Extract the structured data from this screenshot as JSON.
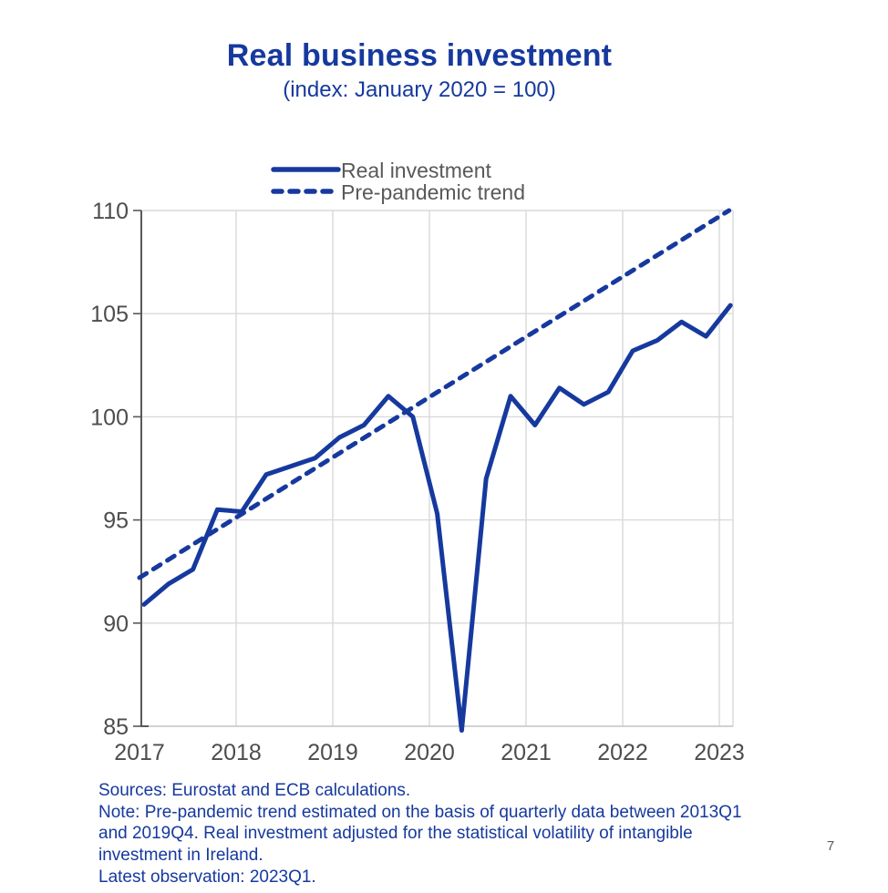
{
  "page": {
    "title": "Real business investment",
    "subtitle": "(index: January 2020 = 100)",
    "page_number": "7"
  },
  "legend": {
    "items": [
      {
        "label": "Real investment",
        "style": "solid"
      },
      {
        "label": "Pre-pandemic trend",
        "style": "dashed"
      }
    ]
  },
  "footer": {
    "lines": [
      "Sources: Eurostat and ECB calculations.",
      "Note: Pre-pandemic trend estimated on the basis of quarterly data between 2013Q1",
      "and 2019Q4. Real investment adjusted for the statistical volatility of intangible",
      "investment in Ireland.",
      "Latest observation: 2023Q1."
    ]
  },
  "colors": {
    "accent_blue": "#16399E",
    "legend_text": "#595959",
    "axis_text": "#4D4D4D",
    "gridline": "#D9D9D9",
    "axis_line": "#595959",
    "bottom_axis_line": "#C4C4C4",
    "page_number_text": "#595959"
  },
  "chart_data": {
    "type": "line",
    "title": "Real business investment",
    "subtitle": "(index: January 2020 = 100)",
    "x_tick_labels": [
      "2017",
      "2018",
      "2019",
      "2020",
      "2021",
      "2022",
      "2023"
    ],
    "y_ticks": [
      85,
      90,
      95,
      100,
      105,
      110
    ],
    "ylim": [
      85,
      110
    ],
    "grid": true,
    "legend_position": "top-center",
    "series": [
      {
        "name": "Real investment",
        "style": "solid",
        "frequency": "quarterly",
        "x_labels": [
          "2017Q1",
          "2017Q2",
          "2017Q3",
          "2017Q4",
          "2018Q1",
          "2018Q2",
          "2018Q3",
          "2018Q4",
          "2019Q1",
          "2019Q2",
          "2019Q3",
          "2019Q4",
          "2020Q1",
          "2020Q2",
          "2020Q3",
          "2020Q4",
          "2021Q1",
          "2021Q2",
          "2021Q3",
          "2021Q4",
          "2022Q1",
          "2022Q2",
          "2022Q3",
          "2022Q4",
          "2023Q1"
        ],
        "values": [
          90.9,
          91.9,
          92.6,
          95.5,
          95.4,
          97.2,
          97.6,
          98.0,
          99.0,
          99.6,
          101.0,
          100.0,
          95.3,
          84.8,
          97.0,
          101.0,
          99.6,
          101.4,
          100.6,
          101.2,
          103.2,
          103.7,
          104.6,
          103.9,
          105.4
        ]
      },
      {
        "name": "Pre-pandemic trend",
        "style": "dashed",
        "points_year_value": [
          [
            2017.0,
            92.2
          ],
          [
            2023.1,
            110.0
          ]
        ]
      }
    ]
  }
}
